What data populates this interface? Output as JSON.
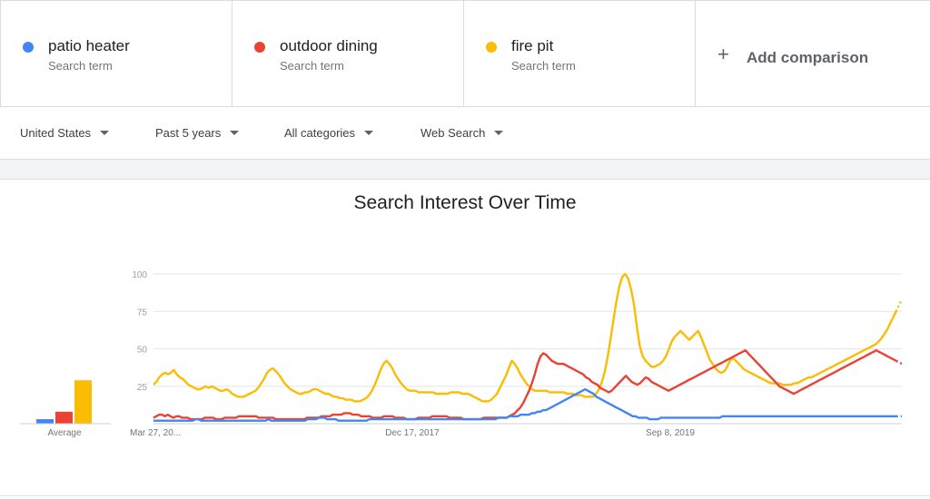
{
  "terms": [
    {
      "name": "patio heater",
      "sub": "Search term",
      "color": "#4285f4"
    },
    {
      "name": "outdoor dining",
      "sub": "Search term",
      "color": "#ea4335"
    },
    {
      "name": "fire pit",
      "sub": "Search term",
      "color": "#fbbc04"
    }
  ],
  "add_comparison": {
    "label": "Add comparison",
    "icon": "plus-icon"
  },
  "filters": {
    "region": "United States",
    "time": "Past 5 years",
    "category": "All categories",
    "search_type": "Web Search"
  },
  "chart_data": {
    "type": "line",
    "title": "Search Interest Over Time",
    "yticks": [
      25,
      50,
      75,
      100
    ],
    "ylim": [
      0,
      100
    ],
    "x_labels": [
      "Mar 27, 20...",
      "Dec 17, 2017",
      "Sep 8, 2019"
    ],
    "grid": true,
    "average_label": "Average",
    "averages": [
      3,
      8,
      29
    ],
    "series": [
      {
        "name": "patio heater",
        "color": "#4285f4",
        "values": [
          2,
          2,
          2,
          2,
          2,
          2,
          2,
          2,
          2,
          2,
          2,
          2,
          2,
          2,
          2,
          3,
          3,
          2,
          2,
          2,
          2,
          2,
          2,
          2,
          2,
          2,
          2,
          2,
          2,
          2,
          2,
          2,
          2,
          2,
          2,
          2,
          2,
          2,
          2,
          2,
          2,
          3,
          2,
          2,
          2,
          2,
          2,
          2,
          2,
          2,
          2,
          2,
          2,
          2,
          2,
          3,
          3,
          3,
          3,
          4,
          4,
          4,
          3,
          3,
          3,
          3,
          2,
          2,
          2,
          2,
          2,
          2,
          2,
          2,
          2,
          2,
          2,
          3,
          3,
          3,
          3,
          3,
          3,
          3,
          3,
          3,
          3,
          3,
          3,
          3,
          3,
          3,
          3,
          3,
          3,
          3,
          3,
          3,
          3,
          3,
          3,
          3,
          3,
          3,
          3,
          3,
          3,
          3,
          3,
          3,
          3,
          3,
          3,
          3,
          3,
          3,
          3,
          3,
          3,
          3,
          3,
          3,
          3,
          4,
          4,
          4,
          4,
          5,
          5,
          5,
          5,
          6,
          6,
          6,
          6,
          7,
          7,
          8,
          8,
          9,
          9,
          10,
          11,
          12,
          13,
          14,
          15,
          16,
          17,
          18,
          19,
          20,
          21,
          22,
          23,
          22,
          21,
          20,
          18,
          17,
          16,
          15,
          14,
          13,
          12,
          11,
          10,
          9,
          8,
          7,
          6,
          5,
          5,
          4,
          4,
          4,
          4,
          3,
          3,
          3,
          3,
          4,
          4,
          4,
          4,
          4,
          4,
          4,
          4,
          4,
          4,
          4,
          4,
          4,
          4,
          4,
          4,
          4,
          4,
          4,
          4,
          4,
          4,
          5,
          5,
          5,
          5,
          5,
          5,
          5,
          5,
          5,
          5,
          5,
          5,
          5,
          5,
          5,
          5,
          5,
          5,
          5,
          5,
          5,
          5,
          5,
          5,
          5,
          5,
          5,
          5,
          5,
          5,
          5,
          5,
          5,
          5,
          5,
          5,
          5,
          5,
          5,
          5,
          5,
          5,
          5,
          5,
          5,
          5,
          5,
          5,
          5,
          5,
          5,
          5,
          5,
          5,
          5,
          5,
          5,
          5,
          5,
          5,
          5,
          5,
          5,
          5,
          5
        ]
      },
      {
        "name": "outdoor dining",
        "color": "#ea4335",
        "values": [
          4,
          5,
          6,
          6,
          5,
          6,
          5,
          4,
          5,
          5,
          4,
          4,
          4,
          3,
          3,
          3,
          3,
          3,
          4,
          4,
          4,
          4,
          3,
          3,
          3,
          4,
          4,
          4,
          4,
          4,
          5,
          5,
          5,
          5,
          5,
          5,
          5,
          4,
          4,
          4,
          4,
          4,
          4,
          3,
          3,
          3,
          3,
          3,
          3,
          3,
          3,
          3,
          3,
          3,
          4,
          4,
          4,
          4,
          4,
          5,
          5,
          5,
          5,
          6,
          6,
          6,
          6,
          7,
          7,
          7,
          6,
          6,
          6,
          5,
          5,
          5,
          5,
          4,
          4,
          4,
          4,
          5,
          5,
          5,
          5,
          4,
          4,
          4,
          4,
          3,
          3,
          3,
          3,
          4,
          4,
          4,
          4,
          4,
          5,
          5,
          5,
          5,
          5,
          5,
          4,
          4,
          4,
          4,
          4,
          3,
          3,
          3,
          3,
          3,
          3,
          3,
          4,
          4,
          4,
          4,
          4,
          4,
          4,
          4,
          4,
          5,
          6,
          7,
          9,
          11,
          14,
          18,
          22,
          27,
          33,
          40,
          45,
          47,
          46,
          44,
          42,
          41,
          40,
          40,
          40,
          39,
          38,
          37,
          36,
          35,
          34,
          33,
          31,
          30,
          28,
          27,
          26,
          24,
          23,
          22,
          21,
          22,
          24,
          26,
          28,
          30,
          32,
          30,
          28,
          27,
          26,
          27,
          29,
          31,
          30,
          28,
          27,
          26,
          25,
          24,
          23,
          22,
          23,
          24,
          25,
          26,
          27,
          28,
          29,
          30,
          31,
          32,
          33,
          34,
          35,
          36,
          37,
          38,
          39,
          40,
          41,
          42,
          43,
          44,
          45,
          46,
          47,
          48,
          49,
          47,
          45,
          43,
          41,
          39,
          37,
          35,
          33,
          31,
          29,
          27,
          25,
          24,
          23,
          22,
          21,
          20,
          21,
          22,
          23,
          24,
          25,
          26,
          27,
          28,
          29,
          30,
          31,
          32,
          33,
          34,
          35,
          36,
          37,
          38,
          39,
          40,
          41,
          42,
          43,
          44,
          45,
          46,
          47,
          48,
          49,
          48,
          47,
          46,
          45,
          44,
          43,
          42,
          41,
          40
        ]
      },
      {
        "name": "fire pit",
        "color": "#fbbc04",
        "values": [
          26,
          28,
          31,
          33,
          34,
          33,
          34,
          36,
          33,
          31,
          30,
          28,
          26,
          25,
          24,
          23,
          23,
          24,
          25,
          24,
          25,
          24,
          23,
          22,
          22,
          23,
          22,
          20,
          19,
          18,
          18,
          18,
          19,
          20,
          21,
          22,
          24,
          27,
          30,
          34,
          36,
          37,
          35,
          33,
          30,
          27,
          25,
          23,
          22,
          21,
          20,
          20,
          21,
          21,
          22,
          23,
          23,
          22,
          21,
          20,
          20,
          19,
          18,
          18,
          17,
          17,
          16,
          16,
          16,
          15,
          15,
          15,
          16,
          17,
          19,
          22,
          26,
          31,
          36,
          40,
          42,
          40,
          37,
          33,
          30,
          27,
          25,
          23,
          22,
          22,
          22,
          21,
          21,
          21,
          21,
          21,
          21,
          20,
          20,
          20,
          20,
          20,
          21,
          21,
          21,
          21,
          20,
          20,
          20,
          19,
          18,
          17,
          16,
          15,
          15,
          15,
          16,
          18,
          20,
          24,
          28,
          32,
          37,
          42,
          40,
          37,
          33,
          30,
          27,
          25,
          23,
          22,
          22,
          22,
          22,
          22,
          21,
          21,
          21,
          21,
          21,
          21,
          20,
          20,
          20,
          19,
          19,
          19,
          18,
          18,
          18,
          18,
          20,
          23,
          28,
          35,
          45,
          57,
          70,
          82,
          92,
          98,
          100,
          97,
          90,
          80,
          65,
          52,
          45,
          42,
          40,
          38,
          38,
          39,
          40,
          42,
          45,
          50,
          55,
          58,
          60,
          62,
          60,
          58,
          56,
          58,
          60,
          62,
          58,
          53,
          48,
          43,
          40,
          37,
          35,
          34,
          35,
          38,
          42,
          44,
          42,
          40,
          38,
          36,
          35,
          34,
          33,
          32,
          31,
          30,
          29,
          28,
          27,
          27,
          27,
          27,
          26,
          26,
          26,
          26,
          27,
          27,
          28,
          29,
          30,
          31,
          31,
          32,
          33,
          34,
          35,
          36,
          37,
          38,
          39,
          40,
          41,
          42,
          43,
          44,
          45,
          46,
          47,
          48,
          49,
          50,
          51,
          52,
          53,
          55,
          57,
          60,
          63,
          67,
          71,
          75,
          79,
          83
        ]
      }
    ]
  }
}
